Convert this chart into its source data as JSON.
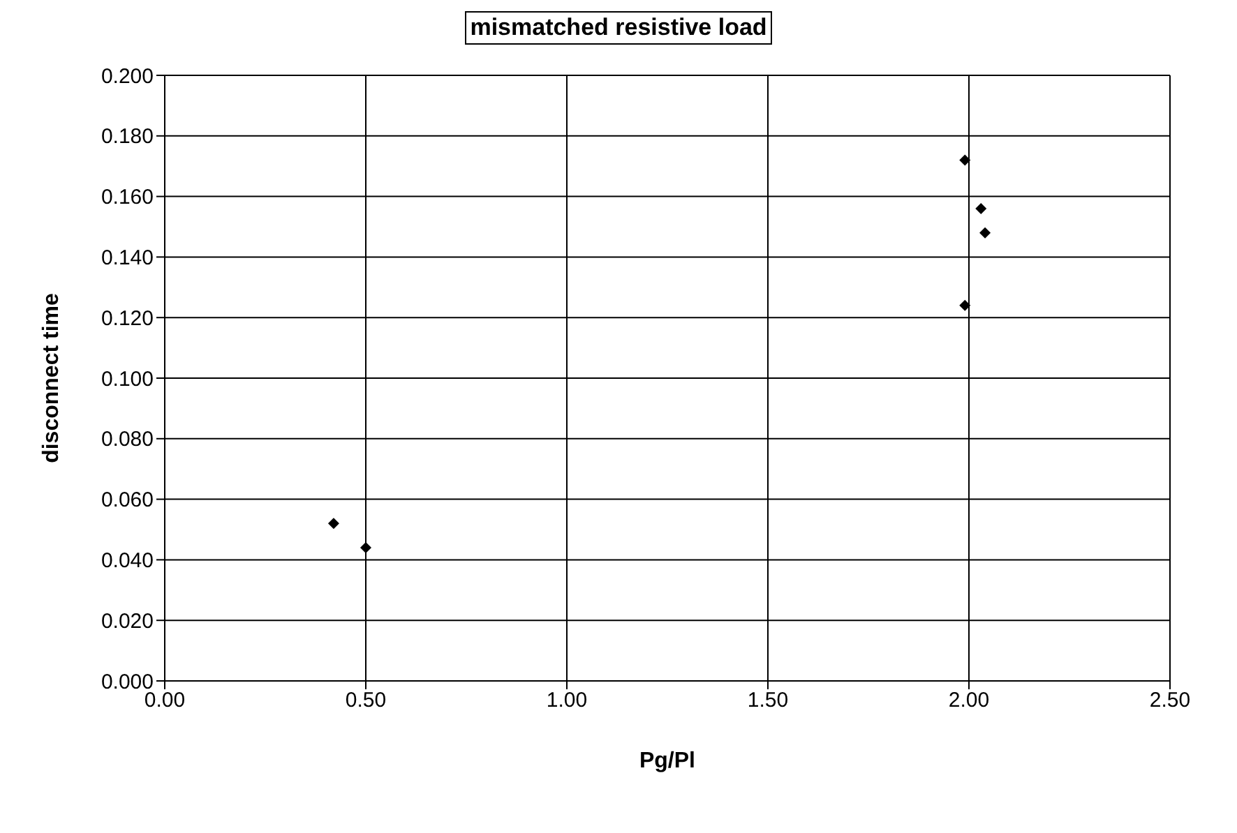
{
  "chart_data": {
    "type": "scatter",
    "title": "mismatched resistive load",
    "xlabel": "Pg/Pl",
    "ylabel": "disconnect time",
    "x": [
      0.42,
      0.5,
      1.99,
      2.03,
      2.04,
      1.99
    ],
    "values": [
      0.052,
      0.044,
      0.172,
      0.156,
      0.148,
      0.124
    ],
    "color": "#000000",
    "marker": "diamond",
    "grid": true,
    "xlim": [
      0,
      2.5
    ],
    "xticks": [
      {
        "value": 0,
        "label": "0.00"
      },
      {
        "value": 0.5,
        "label": "0.50"
      },
      {
        "value": 1,
        "label": "1.00"
      },
      {
        "value": 1.5,
        "label": "1.50"
      },
      {
        "value": 2,
        "label": "2.00"
      },
      {
        "value": 2.5,
        "label": "2.50"
      }
    ],
    "ylim": [
      0,
      0.2
    ],
    "yticks": [
      {
        "value": 0,
        "label": "0.000"
      },
      {
        "value": 0.02,
        "label": "0.020"
      },
      {
        "value": 0.04,
        "label": "0.040"
      },
      {
        "value": 0.06,
        "label": "0.060"
      },
      {
        "value": 0.08,
        "label": "0.080"
      },
      {
        "value": 0.1,
        "label": "0.100"
      },
      {
        "value": 0.12,
        "label": "0.120"
      },
      {
        "value": 0.14,
        "label": "0.140"
      },
      {
        "value": 0.16,
        "label": "0.160"
      },
      {
        "value": 0.18,
        "label": "0.180"
      },
      {
        "value": 0.2,
        "label": "0.200"
      }
    ]
  }
}
